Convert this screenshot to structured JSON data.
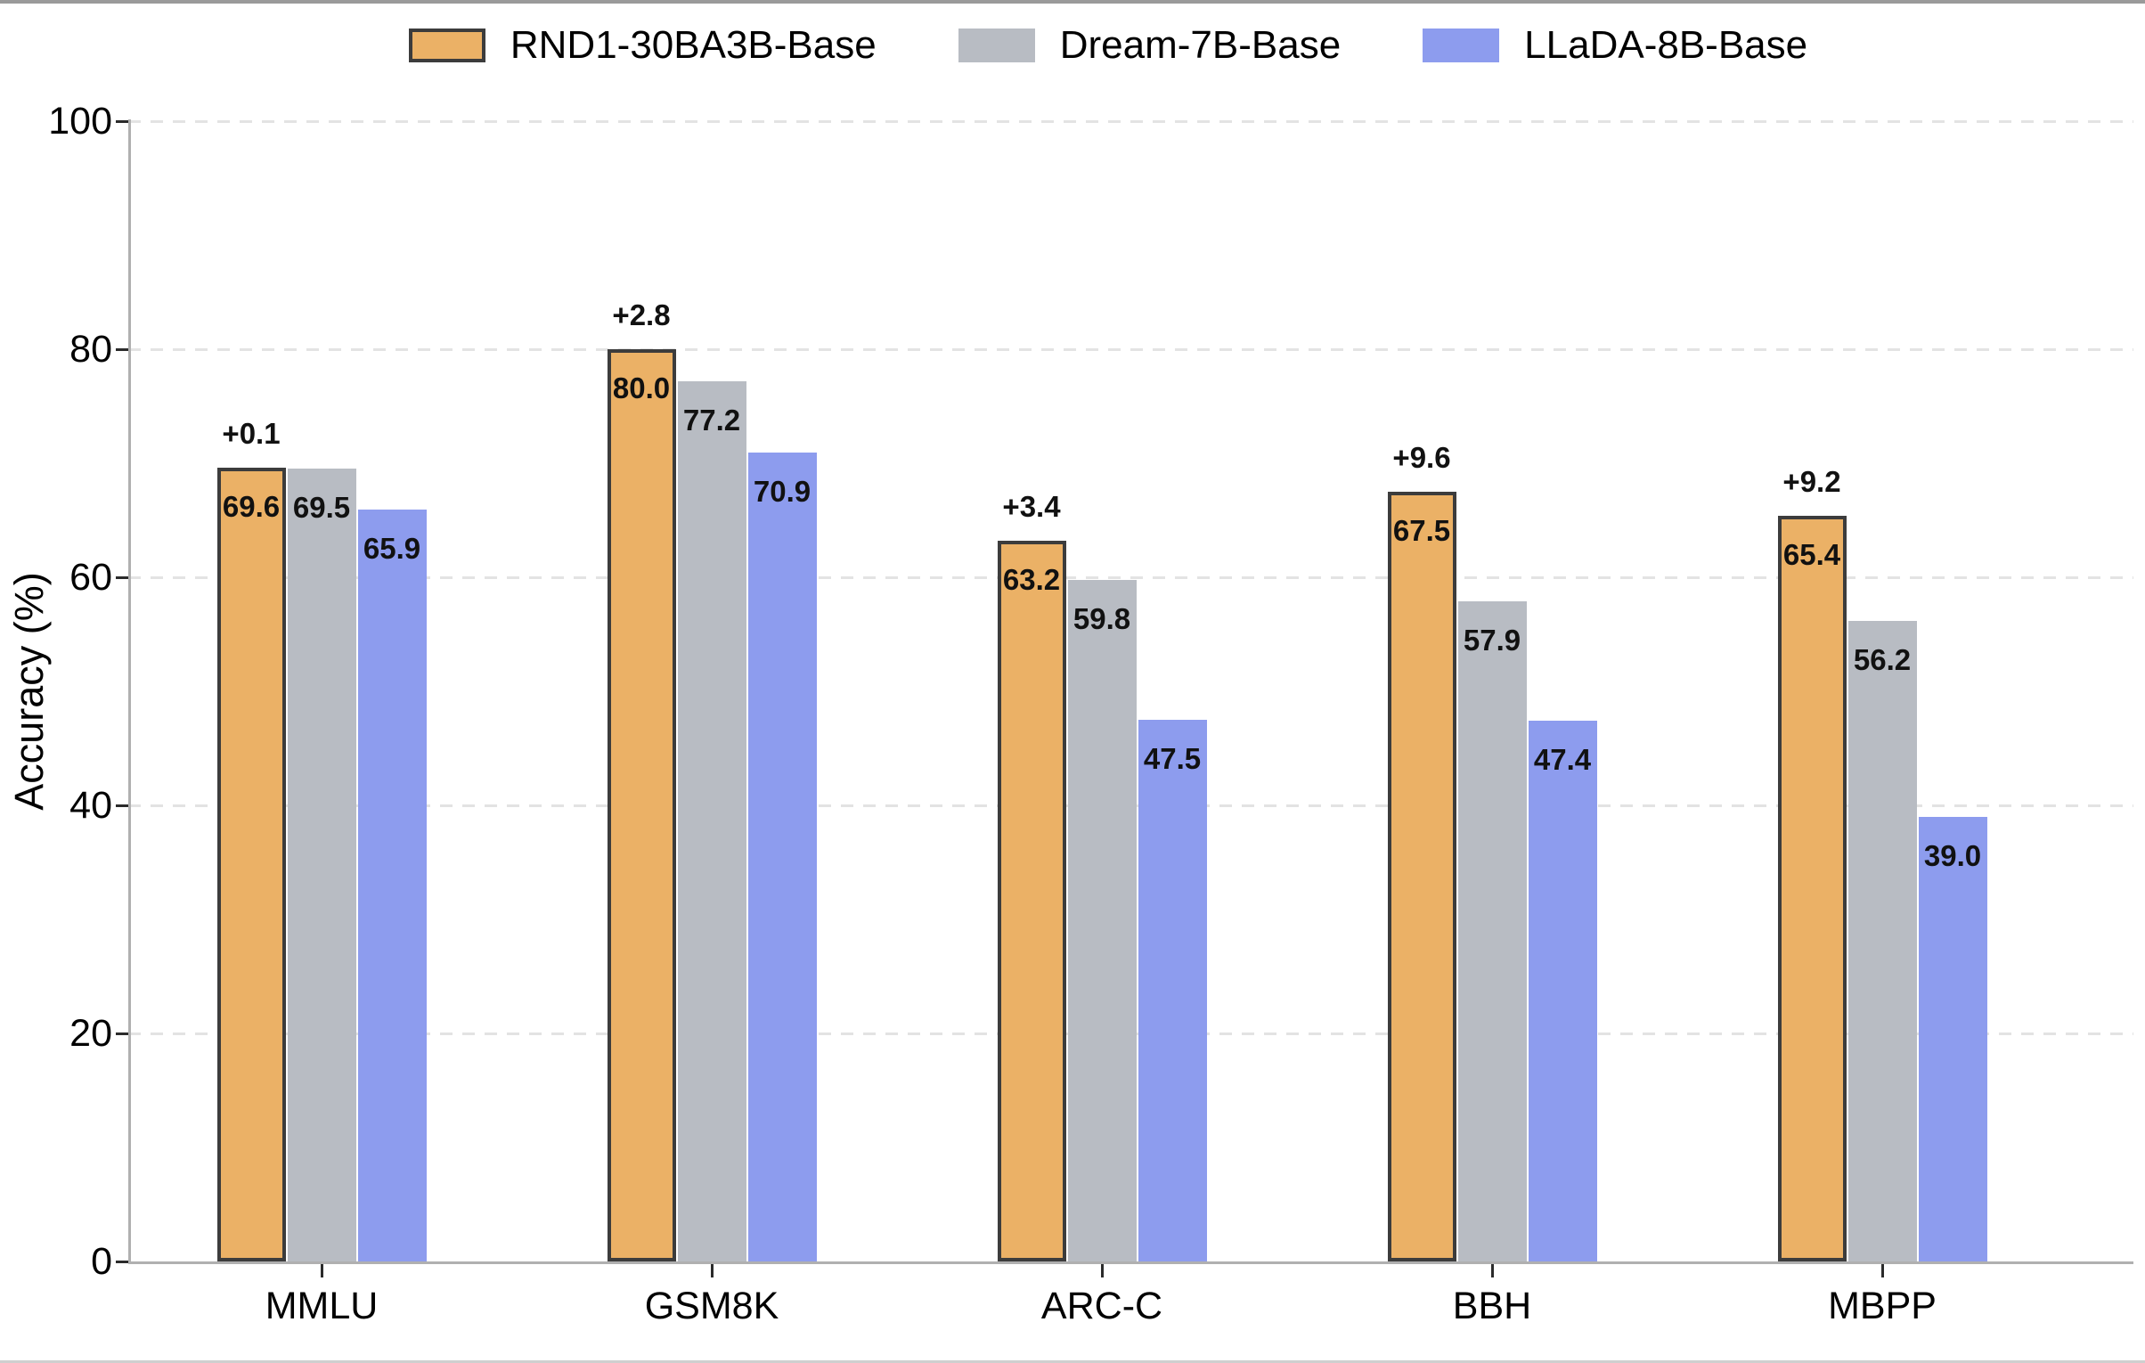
{
  "chart_data": {
    "type": "bar",
    "title": "",
    "xlabel": "",
    "ylabel": "Accuracy (%)",
    "ylim": [
      0,
      100
    ],
    "yticks": [
      0,
      20,
      40,
      60,
      80,
      100
    ],
    "grid": "horizontal-dashed",
    "legend_position": "top",
    "categories": [
      "MMLU",
      "GSM8K",
      "ARC-C",
      "BBH",
      "MBPP"
    ],
    "series": [
      {
        "name": "RND1-30BA3B-Base",
        "color": "#EBB166",
        "border_color": "#3C3C3C",
        "values": [
          69.6,
          80.0,
          63.2,
          67.5,
          65.4
        ]
      },
      {
        "name": "Dream-7B-Base",
        "color": "#B8BCC3",
        "border_color": null,
        "values": [
          69.5,
          77.2,
          59.8,
          57.9,
          56.2
        ]
      },
      {
        "name": "LLaDA-8B-Base",
        "color": "#8D9CEE",
        "border_color": null,
        "values": [
          65.9,
          70.9,
          47.5,
          47.4,
          39.0
        ]
      }
    ],
    "delta_labels": [
      "+0.1",
      "+2.8",
      "+3.4",
      "+9.6",
      "+9.2"
    ]
  },
  "style_colors": {
    "grid": "#e3e3e3",
    "spine": "#b0b0b0",
    "tick": "#2b2b2b",
    "label_text": "#111111"
  }
}
